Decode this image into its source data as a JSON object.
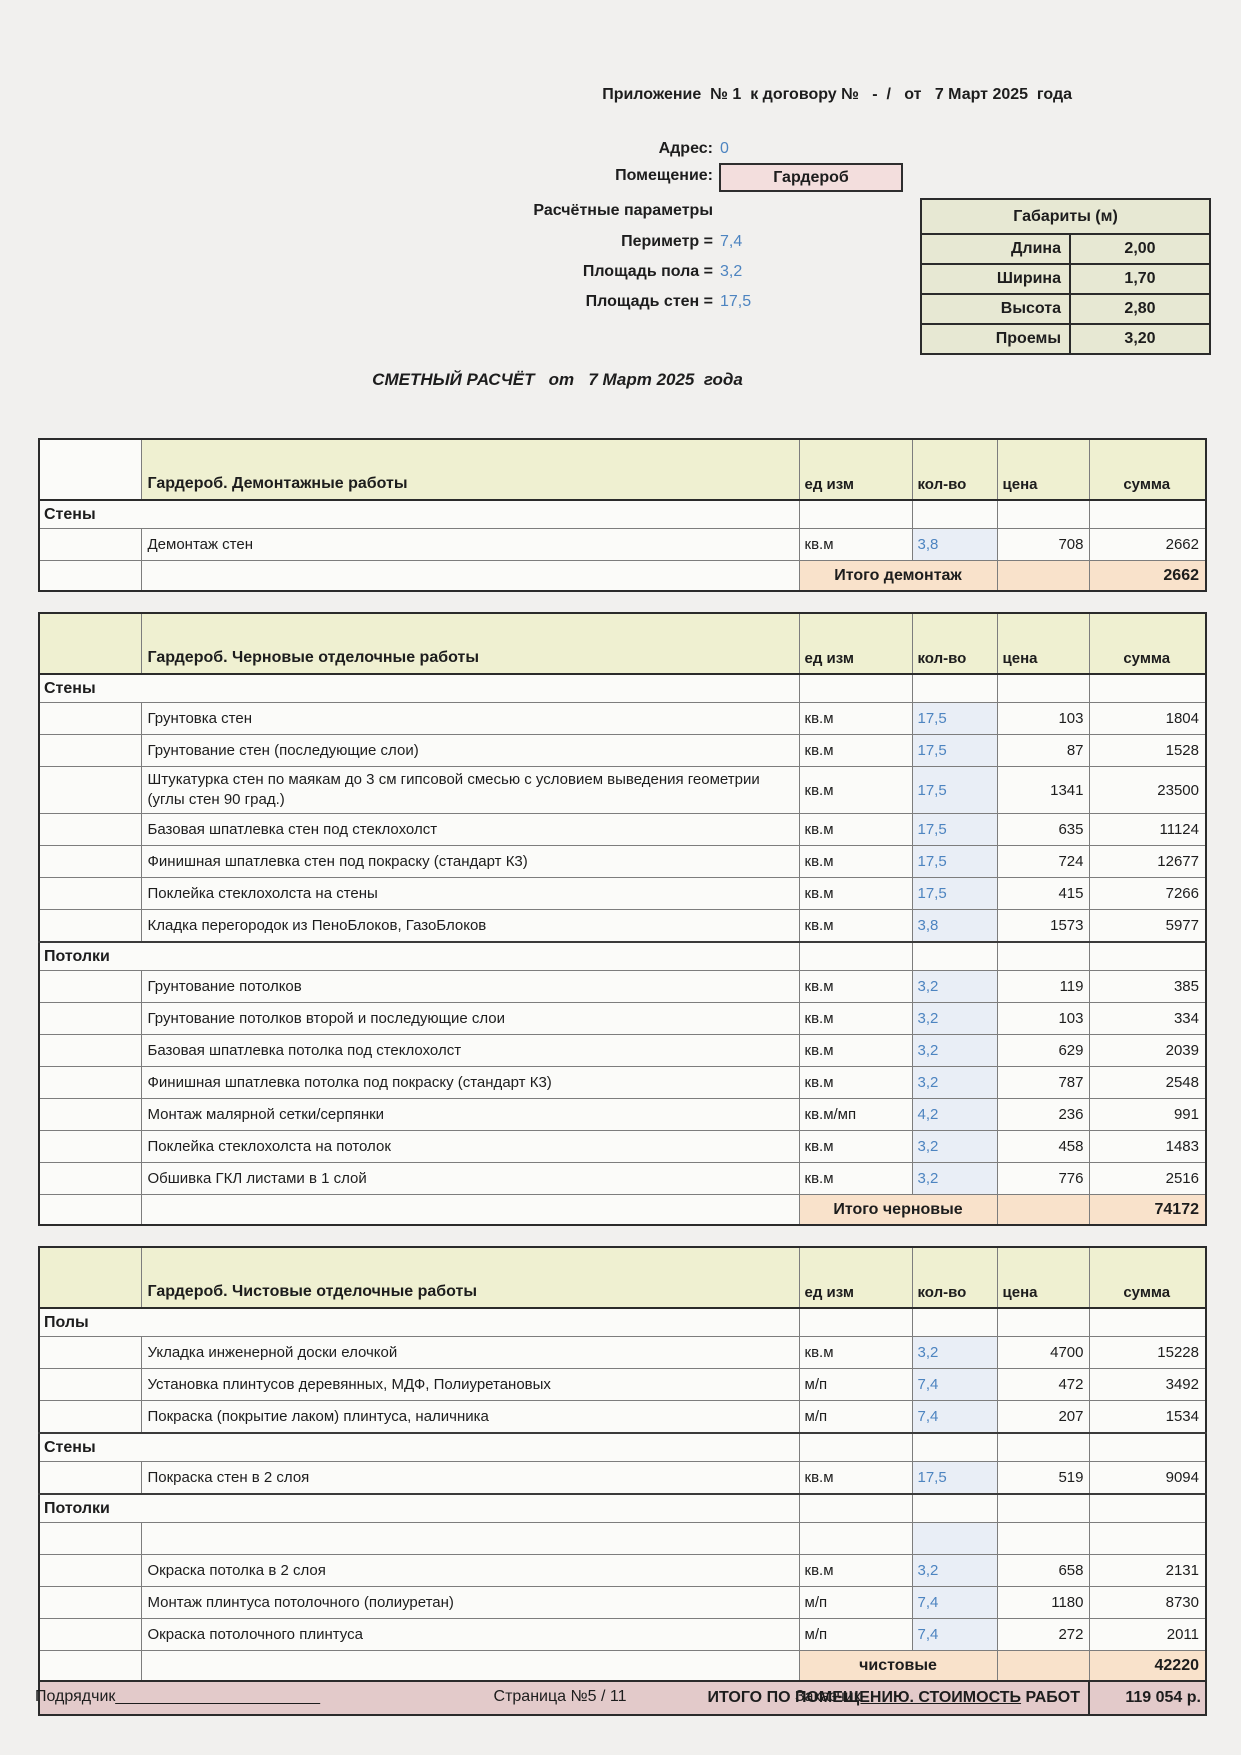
{
  "header": {
    "appendix_line": "Приложение  № 1  к договору №   -  /   от   7 Март 2025  года",
    "address_label": "Адрес:",
    "address_value": "0",
    "room_label": "Помещение:",
    "room_value": "Гардероб",
    "params_title": "Расчётные параметры",
    "params": [
      {
        "label": "Периметр =",
        "value": "7,4"
      },
      {
        "label": "Площадь пола =",
        "value": "3,2"
      },
      {
        "label": "Площадь стен =",
        "value": "17,5"
      }
    ],
    "dimensions": {
      "title": "Габариты (м)",
      "rows": [
        {
          "label": "Длина",
          "value": "2,00"
        },
        {
          "label": "Ширина",
          "value": "1,70"
        },
        {
          "label": "Высота",
          "value": "2,80"
        },
        {
          "label": "Проемы",
          "value": "3,20"
        }
      ]
    }
  },
  "estimate": {
    "title": "СМЕТНЫЙ РАСЧЁТ   от   7 Март 2025  года",
    "columns": {
      "unit": "ед изм",
      "qty": "кол-во",
      "price": "цена",
      "sum": "сумма"
    },
    "sections": [
      {
        "title": "Гардероб. Демонтажные работы",
        "corner_plain": true,
        "rows": [
          {
            "type": "group",
            "label": "Стены"
          },
          {
            "type": "item",
            "desc": "Демонтаж стен",
            "unit": "кв.м",
            "qty": "3,8",
            "price": "708",
            "sum": "2662"
          },
          {
            "type": "total",
            "label": "Итого демонтаж",
            "sum": "2662"
          }
        ]
      },
      {
        "title": "Гардероб. Черновые отделочные работы",
        "corner_plain": false,
        "rows": [
          {
            "type": "group",
            "label": "Стены"
          },
          {
            "type": "item",
            "desc": "Грунтовка стен",
            "unit": "кв.м",
            "qty": "17,5",
            "price": "103",
            "sum": "1804"
          },
          {
            "type": "item",
            "desc": "Грунтование стен (последующие слои)",
            "unit": "кв.м",
            "qty": "17,5",
            "price": "87",
            "sum": "1528"
          },
          {
            "type": "item",
            "desc": "Штукатурка стен  по маякам до 3 см гипсовой смесью с условием выведения геометрии (углы стен 90 град.)",
            "unit": "кв.м",
            "qty": "17,5",
            "price": "1341",
            "sum": "23500"
          },
          {
            "type": "item",
            "desc": "Базовая шпатлевка стен под стеклохолст",
            "unit": "кв.м",
            "qty": "17,5",
            "price": "635",
            "sum": "11124"
          },
          {
            "type": "item",
            "desc": "Финишная шпатлевка стен под покраску (стандарт К3)",
            "unit": "кв.м",
            "qty": "17,5",
            "price": "724",
            "sum": "12677"
          },
          {
            "type": "item",
            "desc": "Поклейка стеклохолста на стены",
            "unit": "кв.м",
            "qty": "17,5",
            "price": "415",
            "sum": "7266"
          },
          {
            "type": "item",
            "desc": "Кладка перегородок из ПеноБлоков, ГазоБлоков",
            "unit": "кв.м",
            "qty": "3,8",
            "price": "1573",
            "sum": "5977"
          },
          {
            "type": "group",
            "label": "Потолки"
          },
          {
            "type": "item",
            "desc": "Грунтование потолков",
            "unit": "кв.м",
            "qty": "3,2",
            "price": "119",
            "sum": "385"
          },
          {
            "type": "item",
            "desc": "Грунтование потолков  второй и последующие слои",
            "unit": "кв.м",
            "qty": "3,2",
            "price": "103",
            "sum": "334"
          },
          {
            "type": "item",
            "desc": "Базовая шпатлевка потолка под стеклохолст",
            "unit": "кв.м",
            "qty": "3,2",
            "price": "629",
            "sum": "2039"
          },
          {
            "type": "item",
            "desc": "Финишная шпатлевка потолка под покраску (стандарт К3)",
            "unit": "кв.м",
            "qty": "3,2",
            "price": "787",
            "sum": "2548"
          },
          {
            "type": "item",
            "desc": "Монтаж малярной сетки/серпянки",
            "unit": "кв.м/мп",
            "qty": "4,2",
            "price": "236",
            "sum": "991"
          },
          {
            "type": "item",
            "desc": "Поклейка стеклохолста на потолок",
            "unit": "кв.м",
            "qty": "3,2",
            "price": "458",
            "sum": "1483"
          },
          {
            "type": "item",
            "desc": "Обшивка  ГКЛ листами в 1 слой",
            "unit": "кв.м",
            "qty": "3,2",
            "price": "776",
            "sum": "2516"
          },
          {
            "type": "total",
            "label": "Итого черновые",
            "sum": "74172"
          }
        ]
      },
      {
        "title": "Гардероб. Чистовые отделочные работы",
        "corner_plain": false,
        "rows": [
          {
            "type": "group",
            "label": "Полы"
          },
          {
            "type": "item",
            "desc": "Укладка инженерной доски елочкой",
            "unit": "кв.м",
            "qty": "3,2",
            "price": "4700",
            "sum": "15228"
          },
          {
            "type": "item",
            "desc": "Установка плинтусов деревянных, МДФ, Полиуретановых",
            "unit": "м/п",
            "qty": "7,4",
            "price": "472",
            "sum": "3492"
          },
          {
            "type": "item",
            "desc": "Покраска (покрытие лаком) плинтуса, наличника",
            "unit": "м/п",
            "qty": "7,4",
            "price": "207",
            "sum": "1534"
          },
          {
            "type": "group",
            "label": "Стены"
          },
          {
            "type": "item",
            "desc": "Покраска стен в 2 слоя",
            "unit": "кв.м",
            "qty": "17,5",
            "price": "519",
            "sum": "9094"
          },
          {
            "type": "group",
            "label": "Потолки"
          },
          {
            "type": "empty"
          },
          {
            "type": "item",
            "desc": "Окраска потолка в 2 слоя",
            "unit": "кв.м",
            "qty": "3,2",
            "price": "658",
            "sum": "2131"
          },
          {
            "type": "item",
            "desc": "Монтаж плинтуса потолочного (полиуретан)",
            "unit": "м/п",
            "qty": "7,4",
            "price": "1180",
            "sum": "8730"
          },
          {
            "type": "item",
            "desc": "Окраска потолочного плинтуса",
            "unit": "м/п",
            "qty": "7,4",
            "price": "272",
            "sum": "2011"
          },
          {
            "type": "total",
            "label": "чистовые",
            "sum": "42220"
          },
          {
            "type": "grand",
            "label": "ИТОГО ПО ПОМЕЩЕНИЮ. СТОИМОСТЬ РАБОТ",
            "sum": "119 054 р."
          }
        ]
      }
    ]
  },
  "footer": {
    "contractor": "Подрядчик_______________________",
    "page": "Страница №5 / 11",
    "customer": "Заказчик__________________"
  },
  "colors": {
    "section_header_bg": "#eff0d1",
    "dims_bg": "#e7e8d3",
    "room_box_bg": "#f3dedd",
    "subtotal_bg": "#f9e2cb",
    "grand_total_bg": "#e3caca",
    "qty_cell_bg": "#e9eef6",
    "value_blue": "#4d84c0",
    "page_bg": "#f1f0ee"
  }
}
